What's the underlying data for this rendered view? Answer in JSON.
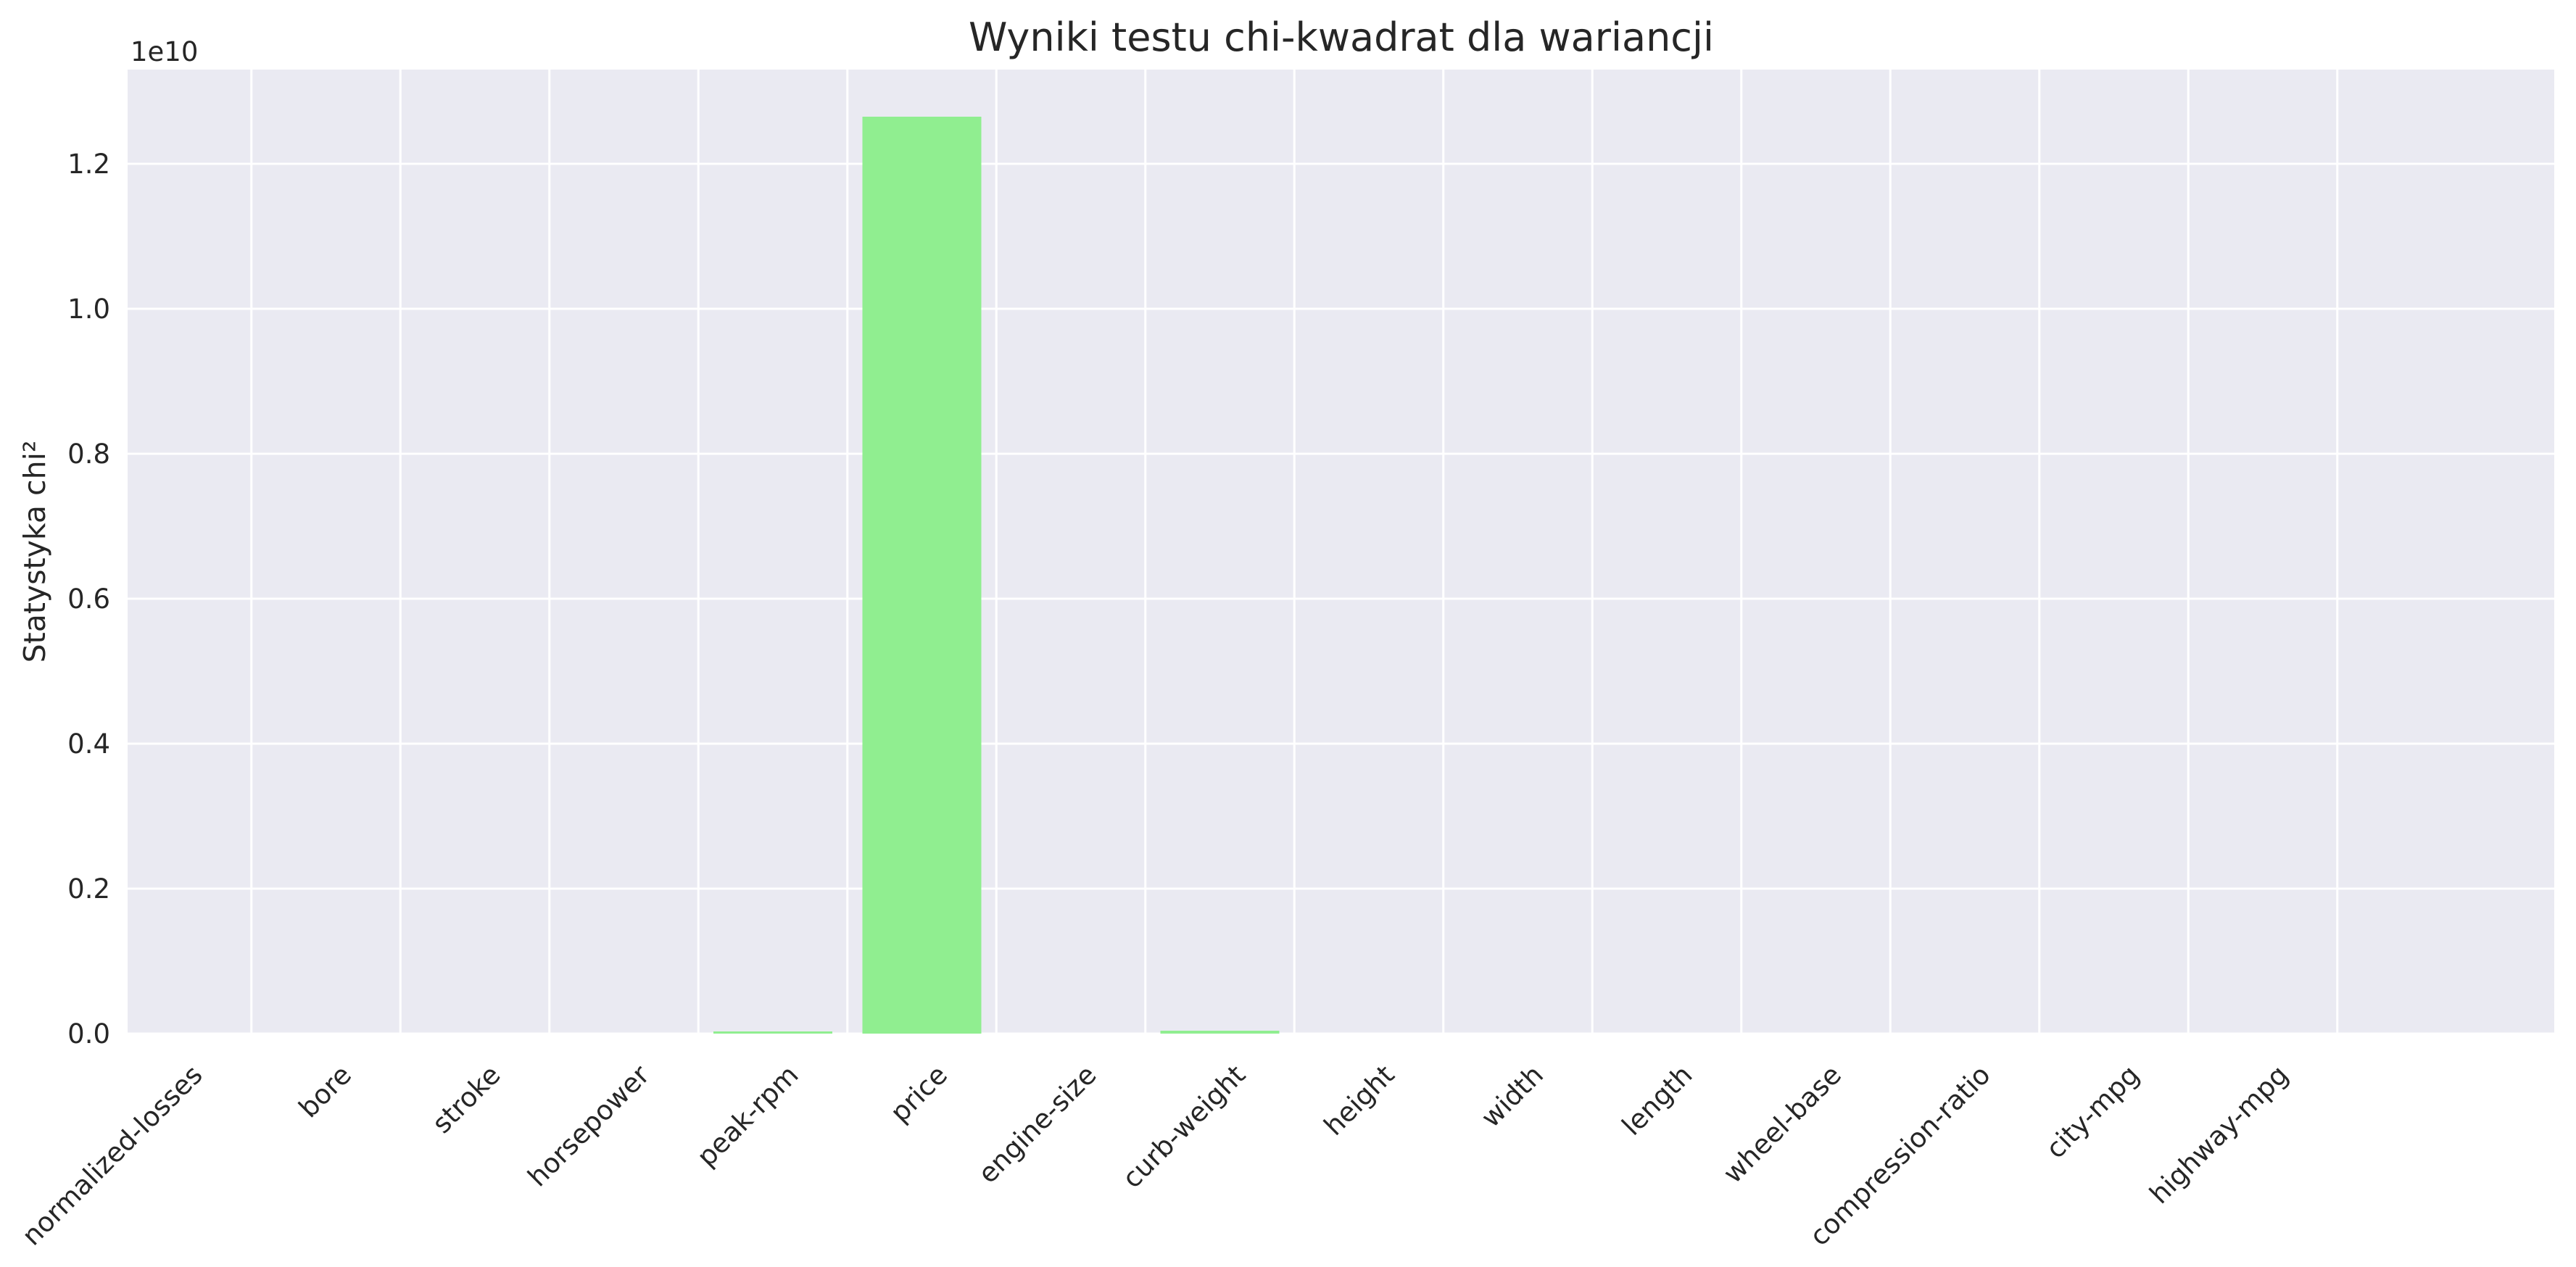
{
  "chart_data": {
    "type": "bar",
    "title": "Wyniki testu chi-kwadrat dla wariancji",
    "xlabel": "",
    "ylabel": "Statystyka chi²",
    "y_offset_text": "1e10",
    "y_scale_factor": 10000000000,
    "categories": [
      "normalized-losses",
      "bore",
      "stroke",
      "horsepower",
      "peak-rpm",
      "price",
      "engine-size",
      "curb-weight",
      "height",
      "width",
      "length",
      "wheel-base",
      "compression-ratio",
      "city-mpg",
      "highway-mpg"
    ],
    "values": [
      0,
      0,
      0,
      0,
      30000000,
      12650000000,
      0,
      40000000,
      0,
      0,
      0,
      0,
      0,
      0,
      0
    ],
    "yticks": [
      0.0,
      0.2,
      0.4,
      0.6,
      0.8,
      1.0,
      1.2
    ],
    "ytick_labels": [
      "0.0",
      "0.2",
      "0.4",
      "0.6",
      "0.8",
      "1.0",
      "1.2"
    ],
    "ylim": [
      0,
      13300000000
    ],
    "grid": true,
    "colors": {
      "bar": "#90ee90",
      "plot_background": "#eaeaf2",
      "grid": "#ffffff",
      "text": "#262626"
    }
  }
}
